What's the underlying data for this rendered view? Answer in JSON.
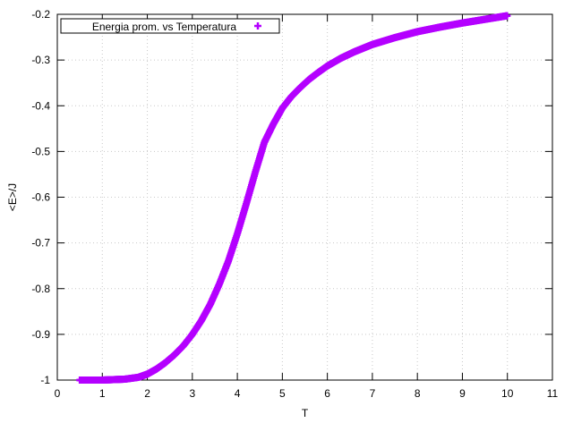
{
  "chart_data": {
    "type": "scatter",
    "title": "",
    "xlabel": "T",
    "ylabel": "<E>/J",
    "xlim": [
      0,
      11
    ],
    "ylim": [
      -1,
      -0.2
    ],
    "xticks": [
      "0",
      "1",
      "2",
      "3",
      "4",
      "5",
      "6",
      "7",
      "8",
      "9",
      "10",
      "11"
    ],
    "yticks": [
      "-0.2",
      "-0.3",
      "-0.4",
      "-0.5",
      "-0.6",
      "-0.7",
      "-0.8",
      "-0.9",
      "-1"
    ],
    "grid": true,
    "legend_position": "top-left",
    "series": [
      {
        "name": "Energia prom. vs Temperatura",
        "color": "#b400ff",
        "marker": "plus",
        "x": [
          0.5,
          1.0,
          1.5,
          1.8,
          2.0,
          2.2,
          2.4,
          2.6,
          2.8,
          3.0,
          3.2,
          3.4,
          3.6,
          3.8,
          4.0,
          4.2,
          4.4,
          4.6,
          4.8,
          5.0,
          5.2,
          5.4,
          5.6,
          5.8,
          6.0,
          6.3,
          6.6,
          7.0,
          7.5,
          8.0,
          8.5,
          9.0,
          9.5,
          10.0
        ],
        "y": [
          -1.0,
          -1.0,
          -0.998,
          -0.994,
          -0.987,
          -0.976,
          -0.962,
          -0.945,
          -0.925,
          -0.9,
          -0.87,
          -0.834,
          -0.79,
          -0.74,
          -0.68,
          -0.614,
          -0.545,
          -0.48,
          -0.44,
          -0.405,
          -0.38,
          -0.36,
          -0.342,
          -0.327,
          -0.313,
          -0.296,
          -0.282,
          -0.266,
          -0.251,
          -0.238,
          -0.228,
          -0.219,
          -0.211,
          -0.203
        ]
      }
    ]
  }
}
